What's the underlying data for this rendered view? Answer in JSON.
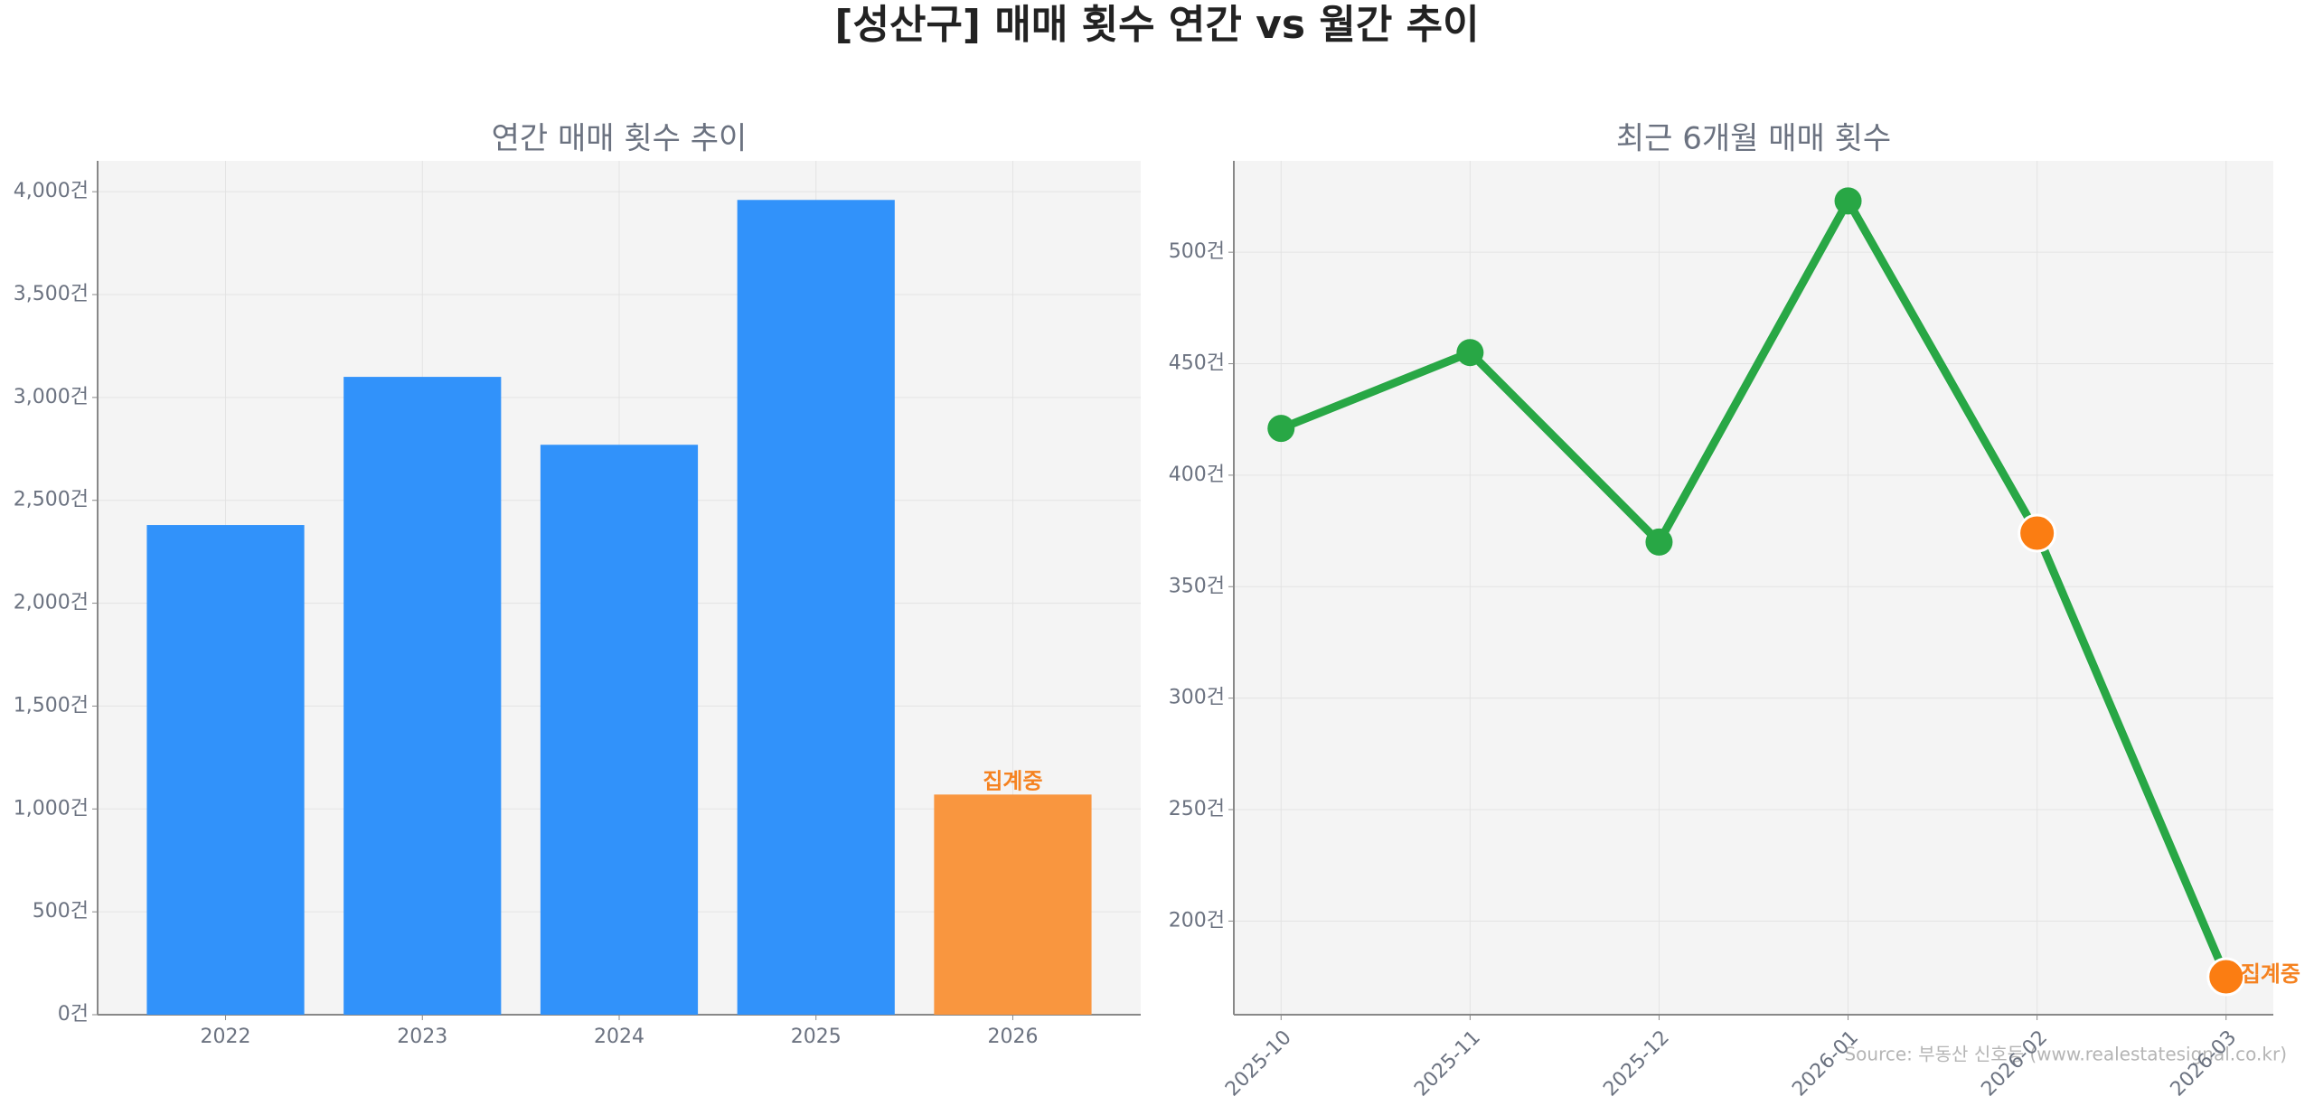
{
  "title": "[성산구] 매매 횟수 연간 vs 월간 추이",
  "source": "Source: 부동산 신호등 (www.realestatesignal.co.kr)",
  "chart_data": [
    {
      "type": "bar",
      "title": "연간 매매 횟수 추이",
      "categories": [
        "2022",
        "2023",
        "2024",
        "2025",
        "2026"
      ],
      "values": [
        2380,
        3100,
        2770,
        3960,
        1070
      ],
      "colors": [
        "#3192fa",
        "#3192fa",
        "#3192fa",
        "#3192fa",
        "#f9963f"
      ],
      "annotations": [
        {
          "text": "집계중",
          "x": "2026",
          "color": "#f58220"
        }
      ],
      "ylim": [
        0,
        4150
      ],
      "yticks": [
        {
          "value": 0,
          "label": "0건"
        },
        {
          "value": 500,
          "label": "500건"
        },
        {
          "value": 1000,
          "label": "1,000건"
        },
        {
          "value": 1500,
          "label": "1,500건"
        },
        {
          "value": 2000,
          "label": "2,000건"
        },
        {
          "value": 2500,
          "label": "2,500건"
        },
        {
          "value": 3000,
          "label": "3,000건"
        },
        {
          "value": 3500,
          "label": "3,500건"
        },
        {
          "value": 4000,
          "label": "4,000건"
        }
      ],
      "grid": true
    },
    {
      "type": "line",
      "title": "최근 6개월 매매 횟수",
      "categories": [
        "2025-10",
        "2025-11",
        "2025-12",
        "2026-01",
        "2026-02",
        "2026-03"
      ],
      "series": [
        {
          "name": "매매 횟수",
          "color": "#28a745",
          "values": [
            421,
            455,
            370,
            523,
            374,
            175
          ],
          "marker_colors": [
            "#28a745",
            "#28a745",
            "#28a745",
            "#28a745",
            "#fb7d12",
            "#fb7d12"
          ]
        }
      ],
      "annotations": [
        {
          "text": "집계중",
          "x": "2026-03",
          "color": "#f58220"
        }
      ],
      "ylim": [
        158,
        541
      ],
      "yticks": [
        {
          "value": 200,
          "label": "200건"
        },
        {
          "value": 250,
          "label": "250건"
        },
        {
          "value": 300,
          "label": "300건"
        },
        {
          "value": 350,
          "label": "350건"
        },
        {
          "value": 400,
          "label": "400건"
        },
        {
          "value": 450,
          "label": "450건"
        },
        {
          "value": 500,
          "label": "500건"
        }
      ],
      "grid": true
    }
  ]
}
